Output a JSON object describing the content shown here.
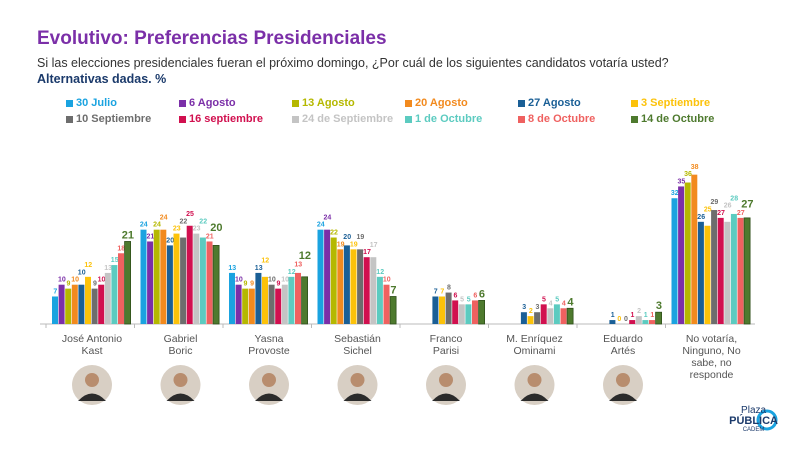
{
  "title": "Evolutivo: Preferencias Presidenciales",
  "question": "Si las elecciones presidenciales fueran el próximo domingo, ¿Por cuál de los siguientes candidatos votaría usted?",
  "subtitle": "Alternativas dadas. %",
  "logo": {
    "line1": "Plaza",
    "line2": "PÚBLICA",
    "line3": "CADEM"
  },
  "chart_data": {
    "type": "bar",
    "categories": [
      "José Antonio Kast",
      "Gabriel Boric",
      "Yasna Provoste",
      "Sebastián Sichel",
      "Franco Parisi",
      "M. Enríquez Ominami",
      "Eduardo Artés",
      "No votaría, Ninguno, No sabe, no responde"
    ],
    "category_lines": [
      [
        "José Antonio",
        "Kast"
      ],
      [
        "Gabriel",
        "Boric"
      ],
      [
        "Yasna",
        "Provoste"
      ],
      [
        "Sebastián",
        "Sichel"
      ],
      [
        "Franco",
        "Parisi"
      ],
      [
        "M. Enríquez",
        "Ominami"
      ],
      [
        "Eduardo",
        "Artés"
      ],
      [
        "No votaría,",
        "Ninguno, No",
        "sabe, no",
        "responde"
      ]
    ],
    "ylim": [
      0,
      40
    ],
    "series": [
      {
        "name": "30 Julio",
        "color": "#1aa3e0",
        "values": [
          7,
          24,
          13,
          24,
          null,
          null,
          null,
          32
        ]
      },
      {
        "name": "6 Agosto",
        "color": "#7b2fa8",
        "values": [
          10,
          21,
          10,
          24,
          null,
          null,
          null,
          35
        ]
      },
      {
        "name": "13 Agosto",
        "color": "#b5b800",
        "values": [
          9,
          24,
          9,
          22,
          null,
          null,
          null,
          36
        ]
      },
      {
        "name": "20 Agosto",
        "color": "#f28a1e",
        "values": [
          10,
          24,
          9,
          19,
          null,
          null,
          null,
          38
        ]
      },
      {
        "name": "27 Agosto",
        "color": "#1a5f96",
        "values": [
          10,
          20,
          13,
          20,
          7,
          3,
          1,
          26
        ]
      },
      {
        "name": "3 Septiembre",
        "color": "#fcc20a",
        "values": [
          12,
          23,
          12,
          19,
          7,
          2,
          0,
          25
        ]
      },
      {
        "name": "10 Septiembre",
        "color": "#6d6d6d",
        "values": [
          9,
          22,
          10,
          19,
          8,
          3,
          0,
          29
        ]
      },
      {
        "name": "16 septiembre",
        "color": "#d1104f",
        "values": [
          10,
          25,
          9,
          17,
          6,
          5,
          1,
          27
        ]
      },
      {
        "name": "24 de Septiembre",
        "color": "#c4c4c4",
        "values": [
          13,
          23,
          10,
          17,
          5,
          4,
          2,
          26
        ]
      },
      {
        "name": "1 de Octubre",
        "color": "#5ccbc0",
        "values": [
          15,
          22,
          12,
          12,
          5,
          5,
          1,
          28
        ]
      },
      {
        "name": "8 de Octubre",
        "color": "#ef6160",
        "values": [
          18,
          21,
          13,
          10,
          6,
          4,
          1,
          27
        ]
      },
      {
        "name": "14 de Octubre",
        "color": "#4e7a2e",
        "values": [
          21,
          20,
          12,
          7,
          6,
          4,
          3,
          27
        ]
      }
    ]
  }
}
